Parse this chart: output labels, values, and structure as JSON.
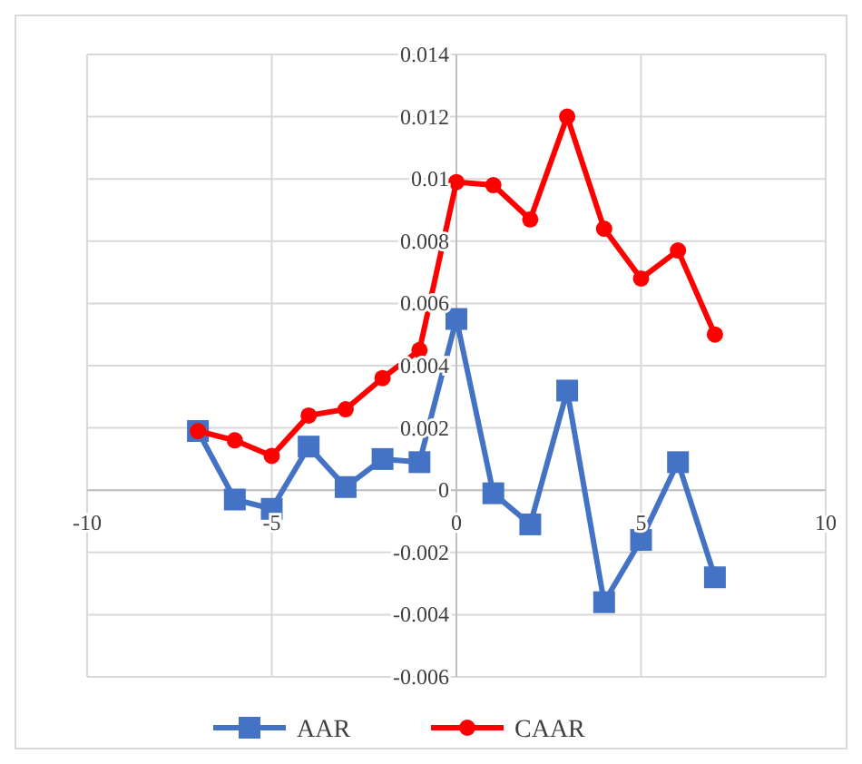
{
  "chart_data": {
    "type": "line",
    "x": [
      -7,
      -6,
      -5,
      -4,
      -3,
      -2,
      -1,
      0,
      1,
      2,
      3,
      4,
      5,
      6,
      7
    ],
    "series": [
      {
        "name": "AAR",
        "color": "#4472c4",
        "marker": "square",
        "values": [
          0.0019,
          -0.0003,
          -0.0006,
          0.0014,
          0.0001,
          0.001,
          0.0009,
          0.0055,
          -0.0001,
          -0.0011,
          0.0032,
          -0.0036,
          -0.0016,
          0.0009,
          -0.0028
        ]
      },
      {
        "name": "CAAR",
        "color": "#ff0000",
        "marker": "circle",
        "values": [
          0.0019,
          0.0016,
          0.0011,
          0.0024,
          0.0026,
          0.0036,
          0.0045,
          0.0099,
          0.0098,
          0.0087,
          0.012,
          0.0084,
          0.0068,
          0.0077,
          0.005
        ]
      }
    ],
    "xlim": [
      -10,
      10
    ],
    "xticks": [
      -10,
      -5,
      0,
      5,
      10
    ],
    "ylim": [
      -0.006,
      0.014
    ],
    "yticks": [
      -0.006,
      -0.004,
      -0.002,
      0,
      0.002,
      0.004,
      0.006,
      0.008,
      0.01,
      0.012,
      0.014
    ],
    "grid": true,
    "legend": "bottom"
  }
}
